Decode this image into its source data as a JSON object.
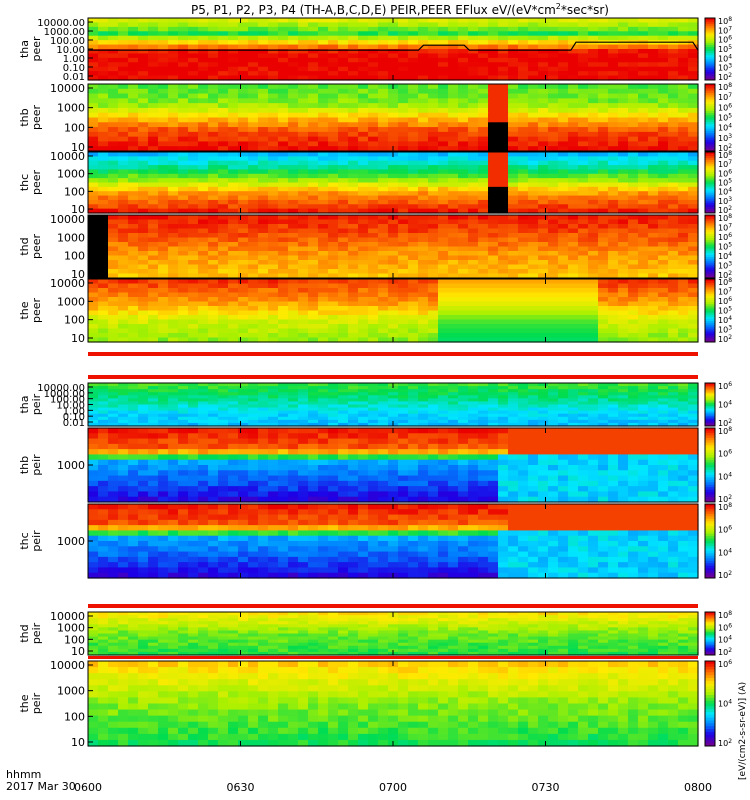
{
  "title": "P5, P1, P2, P3, P4 (TH-A,B,C,D,E) PEIR,PEER EFlux eV/(eV*cm^2*sec*sr)",
  "title_parts": {
    "pre": "P5, P1, P2, P3, P4 (TH-A,B,C,D,E) PEIR,PEER EFlux eV/(eV*cm",
    "sup": "2",
    "post": "*sec*sr)"
  },
  "footer": {
    "time_format": "hhmm",
    "date": "2017 Mar 30"
  },
  "colorbar_title": "[eV/(cm2-s-sr-eV)] (A)",
  "chart_data": [
    {
      "type": "heatmap",
      "name_label": "tha\npeer",
      "panel": "tha peer",
      "x_ticks": [
        "0600",
        "0630",
        "0700",
        "0730",
        "0800"
      ],
      "y_ticks": [
        "10000.00",
        "1000.00",
        "100.00",
        "10.00",
        "1.00",
        "0.10",
        "0.01"
      ],
      "colorbar_ticks": [
        "10^2",
        "10^3",
        "10^4",
        "10^5",
        "10^6",
        "10^7",
        "10^8"
      ],
      "dominant_colors": [
        "#ff2200",
        "#ffdd00",
        "#00dd55",
        "#22ddff"
      ]
    },
    {
      "type": "heatmap",
      "panel": "thb peer",
      "y_ticks": [
        "10000",
        "1000",
        "100",
        "10"
      ],
      "colorbar_ticks": [
        "10^2",
        "10^3",
        "10^4",
        "10^5",
        "10^6",
        "10^7",
        "10^8"
      ]
    },
    {
      "type": "heatmap",
      "panel": "thc peer",
      "y_ticks": [
        "10000",
        "1000",
        "100",
        "10"
      ],
      "colorbar_ticks": [
        "10^2",
        "10^3",
        "10^4",
        "10^5",
        "10^6",
        "10^7",
        "10^8"
      ]
    },
    {
      "type": "heatmap",
      "panel": "thd peer",
      "y_ticks": [
        "10000",
        "1000",
        "100",
        "10"
      ],
      "colorbar_ticks": [
        "10^2",
        "10^3",
        "10^4",
        "10^5",
        "10^6",
        "10^7",
        "10^8"
      ]
    },
    {
      "type": "heatmap",
      "panel": "the peer",
      "y_ticks": [
        "10000",
        "1000",
        "100",
        "10"
      ],
      "colorbar_ticks": [
        "10^2",
        "10^3",
        "10^4",
        "10^5",
        "10^6",
        "10^7",
        "10^8"
      ]
    },
    {
      "type": "heatmap",
      "panel": "tha peir",
      "y_ticks": [
        "10000.00",
        "1000.00",
        "100.00",
        "10.00",
        "1.00",
        "0.10",
        "0.01"
      ],
      "colorbar_ticks": [
        "10^2",
        "10^4",
        "10^6"
      ]
    },
    {
      "type": "heatmap",
      "panel": "thb peir",
      "y_ticks": [
        "1000"
      ],
      "colorbar_ticks": [
        "10^2",
        "10^4",
        "10^6",
        "10^8"
      ]
    },
    {
      "type": "heatmap",
      "panel": "thc peir",
      "y_ticks": [
        "1000"
      ],
      "colorbar_ticks": [
        "10^2",
        "10^4",
        "10^6",
        "10^8"
      ]
    },
    {
      "type": "heatmap",
      "panel": "thd peir",
      "y_ticks": [
        "10000",
        "1000",
        "100",
        "10"
      ],
      "colorbar_ticks": [
        "10^2",
        "10^4",
        "10^6",
        "10^8"
      ]
    },
    {
      "type": "heatmap",
      "panel": "the peir",
      "y_ticks": [
        "10000",
        "1000",
        "100",
        "10"
      ],
      "colorbar_ticks": [
        "10^2",
        "10^4",
        "10^6"
      ]
    }
  ],
  "panel_names": [
    [
      "tha",
      "peer"
    ],
    [
      "thb",
      "peer"
    ],
    [
      "thc",
      "peer"
    ],
    [
      "thd",
      "peer"
    ],
    [
      "the",
      "peer"
    ],
    [
      "tha",
      "peir"
    ],
    [
      "thb",
      "peir"
    ],
    [
      "thc",
      "peir"
    ],
    [
      "thd",
      "peir"
    ],
    [
      "the",
      "peir"
    ]
  ],
  "x_ticks": [
    "0600",
    "0630",
    "0700",
    "0730",
    "0800"
  ]
}
